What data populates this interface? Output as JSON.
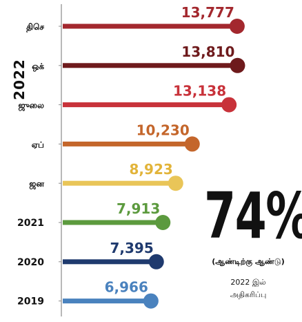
{
  "chart_data": {
    "type": "lollipop",
    "year_group_label": "2022",
    "categories": [
      "திசெ",
      "ஒக்",
      "ஜுலை",
      "ஏப்",
      "ஜன",
      "2021",
      "2020",
      "2019"
    ],
    "values": [
      13777,
      13810,
      13138,
      10230,
      8923,
      7913,
      7395,
      6966
    ],
    "value_labels": [
      "13,777",
      "13,810",
      "13,138",
      "10,230",
      "8,923",
      "7,913",
      "7,395",
      "6,966"
    ],
    "colors": [
      "#a3282e",
      "#6e1a1c",
      "#c8323a",
      "#c4662b",
      "#e9c558",
      "#5c9a3e",
      "#1f3a6e",
      "#4a82be"
    ],
    "label_colors": [
      "#a3282e",
      "#6e1a1c",
      "#c8323a",
      "#c4662b",
      "#e2b43a",
      "#5c9a3e",
      "#1f3a6e",
      "#4a82be"
    ],
    "xlim": [
      0,
      15200
    ],
    "highlight": {
      "value": "74%",
      "subtitle": "(ஆண்டிற்கு ஆண்டு)",
      "note_line1": "2022 இல்",
      "note_line2": "அதிகரிப்பு"
    }
  }
}
